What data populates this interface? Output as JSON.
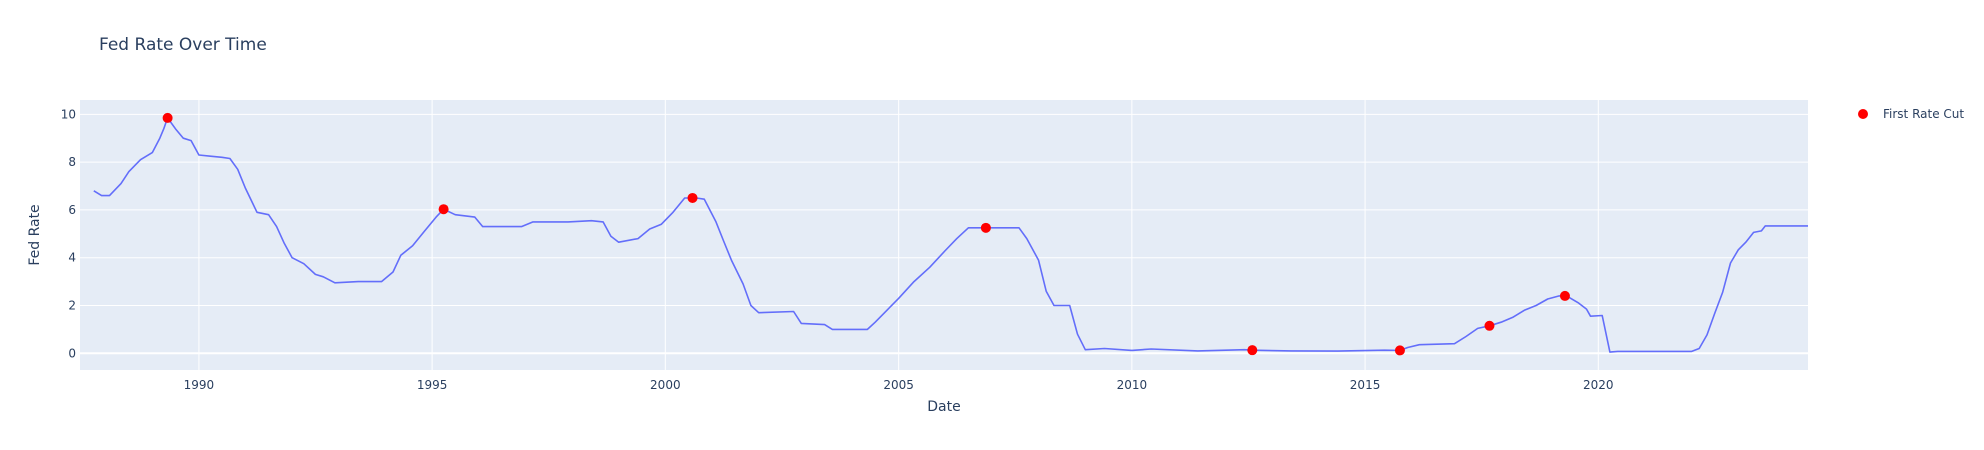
{
  "chart_data": {
    "type": "line",
    "title": "Fed Rate Over Time",
    "xlabel": "Date",
    "ylabel": "Fed Rate",
    "x_range": [
      "1987-06-15",
      "2024-06-30"
    ],
    "ylim": [
      -0.7,
      10.6
    ],
    "x_ticks": [
      {
        "date": "1990-01-01",
        "label": "1990"
      },
      {
        "date": "1995-01-01",
        "label": "1995"
      },
      {
        "date": "2000-01-01",
        "label": "2000"
      },
      {
        "date": "2005-01-01",
        "label": "2005"
      },
      {
        "date": "2010-01-01",
        "label": "2010"
      },
      {
        "date": "2015-01-01",
        "label": "2015"
      },
      {
        "date": "2020-01-01",
        "label": "2020"
      }
    ],
    "y_ticks": [
      {
        "value": 0,
        "label": "0"
      },
      {
        "value": 2,
        "label": "2"
      },
      {
        "value": 4,
        "label": "4"
      },
      {
        "value": 6,
        "label": "6"
      },
      {
        "value": 8,
        "label": "8"
      },
      {
        "value": 10,
        "label": "10"
      }
    ],
    "grid": true,
    "legend_position": "top-right",
    "colors": {
      "plot_bg": "#e5ecf6",
      "grid": "#ffffff",
      "line": "#636efa",
      "marker": "#ff0000",
      "text": "#2a3f5f"
    },
    "series": [
      {
        "mode": "line",
        "points": [
          [
            "1987-10-01",
            6.8
          ],
          [
            "1987-12-01",
            6.6
          ],
          [
            "1988-02-01",
            6.6
          ],
          [
            "1988-05-01",
            7.1
          ],
          [
            "1988-07-01",
            7.6
          ],
          [
            "1988-10-01",
            8.1
          ],
          [
            "1989-01-01",
            8.4
          ],
          [
            "1989-03-01",
            9.0
          ],
          [
            "1989-04-01",
            9.4
          ],
          [
            "1989-05-01",
            9.85
          ],
          [
            "1989-07-01",
            9.4
          ],
          [
            "1989-09-01",
            9.0
          ],
          [
            "1989-11-01",
            8.9
          ],
          [
            "1990-01-01",
            8.3
          ],
          [
            "1990-04-01",
            8.25
          ],
          [
            "1990-07-01",
            8.2
          ],
          [
            "1990-09-01",
            8.15
          ],
          [
            "1990-11-01",
            7.7
          ],
          [
            "1991-01-01",
            6.9
          ],
          [
            "1991-04-01",
            5.9
          ],
          [
            "1991-07-01",
            5.8
          ],
          [
            "1991-09-01",
            5.3
          ],
          [
            "1991-11-01",
            4.6
          ],
          [
            "1992-01-01",
            4.0
          ],
          [
            "1992-04-01",
            3.75
          ],
          [
            "1992-07-01",
            3.3
          ],
          [
            "1992-09-01",
            3.2
          ],
          [
            "1992-12-01",
            2.95
          ],
          [
            "1993-06-01",
            3.0
          ],
          [
            "1993-12-01",
            3.0
          ],
          [
            "1994-03-01",
            3.4
          ],
          [
            "1994-05-01",
            4.1
          ],
          [
            "1994-08-01",
            4.5
          ],
          [
            "1994-11-01",
            5.1
          ],
          [
            "1995-02-01",
            5.7
          ],
          [
            "1995-04-01",
            6.03
          ],
          [
            "1995-07-01",
            5.8
          ],
          [
            "1995-12-01",
            5.7
          ],
          [
            "1996-02-01",
            5.3
          ],
          [
            "1996-06-01",
            5.3
          ],
          [
            "1996-12-01",
            5.3
          ],
          [
            "1997-03-01",
            5.5
          ],
          [
            "1997-12-01",
            5.5
          ],
          [
            "1998-06-01",
            5.55
          ],
          [
            "1998-09-01",
            5.5
          ],
          [
            "1998-11-01",
            4.9
          ],
          [
            "1999-01-01",
            4.65
          ],
          [
            "1999-06-01",
            4.8
          ],
          [
            "1999-09-01",
            5.2
          ],
          [
            "1999-12-01",
            5.4
          ],
          [
            "2000-03-01",
            5.9
          ],
          [
            "2000-06-01",
            6.5
          ],
          [
            "2000-09-01",
            6.5
          ],
          [
            "2000-11-01",
            6.45
          ],
          [
            "2001-02-01",
            5.5
          ],
          [
            "2001-04-01",
            4.7
          ],
          [
            "2001-06-01",
            3.9
          ],
          [
            "2001-09-01",
            2.9
          ],
          [
            "2001-11-01",
            2.0
          ],
          [
            "2002-01-01",
            1.7
          ],
          [
            "2002-10-01",
            1.75
          ],
          [
            "2002-12-01",
            1.25
          ],
          [
            "2003-06-01",
            1.2
          ],
          [
            "2003-08-01",
            1.0
          ],
          [
            "2004-05-01",
            1.0
          ],
          [
            "2004-07-01",
            1.3
          ],
          [
            "2004-10-01",
            1.8
          ],
          [
            "2005-01-01",
            2.3
          ],
          [
            "2005-05-01",
            3.0
          ],
          [
            "2005-09-01",
            3.6
          ],
          [
            "2006-01-01",
            4.3
          ],
          [
            "2006-04-01",
            4.8
          ],
          [
            "2006-07-01",
            5.25
          ],
          [
            "2006-12-01",
            5.25
          ],
          [
            "2007-08-01",
            5.25
          ],
          [
            "2007-10-01",
            4.8
          ],
          [
            "2008-01-01",
            3.9
          ],
          [
            "2008-03-01",
            2.6
          ],
          [
            "2008-05-01",
            2.0
          ],
          [
            "2008-09-01",
            2.0
          ],
          [
            "2008-11-01",
            0.8
          ],
          [
            "2009-01-01",
            0.15
          ],
          [
            "2009-06-01",
            0.2
          ],
          [
            "2010-01-01",
            0.12
          ],
          [
            "2010-06-01",
            0.18
          ],
          [
            "2011-06-01",
            0.1
          ],
          [
            "2012-06-01",
            0.15
          ],
          [
            "2012-08-01",
            0.13
          ],
          [
            "2013-06-01",
            0.1
          ],
          [
            "2014-06-01",
            0.09
          ],
          [
            "2015-06-01",
            0.13
          ],
          [
            "2015-10-01",
            0.12
          ],
          [
            "2015-12-01",
            0.24
          ],
          [
            "2016-03-01",
            0.36
          ],
          [
            "2016-12-01",
            0.4
          ],
          [
            "2017-03-01",
            0.7
          ],
          [
            "2017-06-01",
            1.04
          ],
          [
            "2017-09-01",
            1.15
          ],
          [
            "2017-12-01",
            1.3
          ],
          [
            "2018-03-01",
            1.5
          ],
          [
            "2018-06-01",
            1.8
          ],
          [
            "2018-09-01",
            2.0
          ],
          [
            "2018-12-01",
            2.27
          ],
          [
            "2019-03-01",
            2.4
          ],
          [
            "2019-05-01",
            2.39
          ],
          [
            "2019-08-01",
            2.1
          ],
          [
            "2019-10-01",
            1.85
          ],
          [
            "2019-11-01",
            1.55
          ],
          [
            "2020-02-01",
            1.58
          ],
          [
            "2020-04-01",
            0.05
          ],
          [
            "2020-06-01",
            0.08
          ],
          [
            "2021-06-01",
            0.08
          ],
          [
            "2022-01-01",
            0.08
          ],
          [
            "2022-03-01",
            0.2
          ],
          [
            "2022-05-01",
            0.77
          ],
          [
            "2022-07-01",
            1.68
          ],
          [
            "2022-09-01",
            2.56
          ],
          [
            "2022-11-01",
            3.78
          ],
          [
            "2023-01-01",
            4.33
          ],
          [
            "2023-03-01",
            4.65
          ],
          [
            "2023-05-01",
            5.06
          ],
          [
            "2023-07-01",
            5.12
          ],
          [
            "2023-08-01",
            5.33
          ],
          [
            "2024-06-30",
            5.33
          ]
        ]
      },
      {
        "name": "First Rate Cut",
        "mode": "markers",
        "points": [
          [
            "1989-05-01",
            9.85
          ],
          [
            "1995-04-01",
            6.03
          ],
          [
            "2000-08-01",
            6.5
          ],
          [
            "2006-11-15",
            5.25
          ],
          [
            "2012-08-01",
            0.13
          ],
          [
            "2015-10-01",
            0.12
          ],
          [
            "2017-09-01",
            1.15
          ],
          [
            "2019-04-15",
            2.4
          ]
        ]
      }
    ]
  }
}
